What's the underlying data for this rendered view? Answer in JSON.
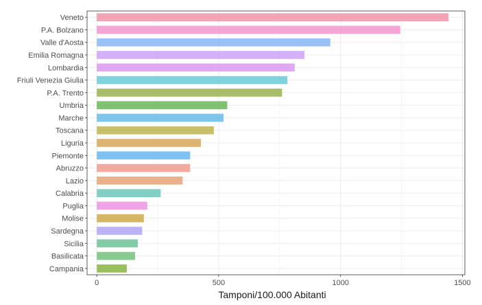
{
  "chart_data": {
    "type": "bar",
    "orientation": "horizontal",
    "xlabel": "Tamponi/100.000 Abitanti",
    "ylabel": "",
    "xlim": [
      -40,
      1510
    ],
    "xticks": [
      0,
      500,
      1000,
      1500
    ],
    "grid": true,
    "legend": "none",
    "categories": [
      "Veneto",
      "P.A. Bolzano",
      "Valle d'Aosta",
      "Emilia Romagna",
      "Lombardia",
      "Friuli Venezia Giulia",
      "P.A. Trento",
      "Umbria",
      "Marche",
      "Toscana",
      "Liguria",
      "Piemonte",
      "Abruzzo",
      "Lazio",
      "Calabria",
      "Puglia",
      "Molise",
      "Sardegna",
      "Sicilia",
      "Basilicata",
      "Campania"
    ],
    "values": [
      1443,
      1245,
      958,
      852,
      812,
      782,
      760,
      535,
      520,
      480,
      427,
      383,
      383,
      352,
      262,
      207,
      193,
      186,
      168,
      157,
      123
    ],
    "colors": [
      "#F08CA0",
      "#F38CCC",
      "#7DB1F5",
      "#C99AF7",
      "#D991F0",
      "#5CC6D4",
      "#8FAC3F",
      "#5CB04A",
      "#58B7EB",
      "#B8AE44",
      "#D49F4A",
      "#5AB1F1",
      "#EE9286",
      "#E39C6D",
      "#5FC1B5",
      "#EC8AE0",
      "#C9A23A",
      "#A89CF6",
      "#5FBE8F",
      "#69BC72",
      "#7FAE32"
    ]
  }
}
